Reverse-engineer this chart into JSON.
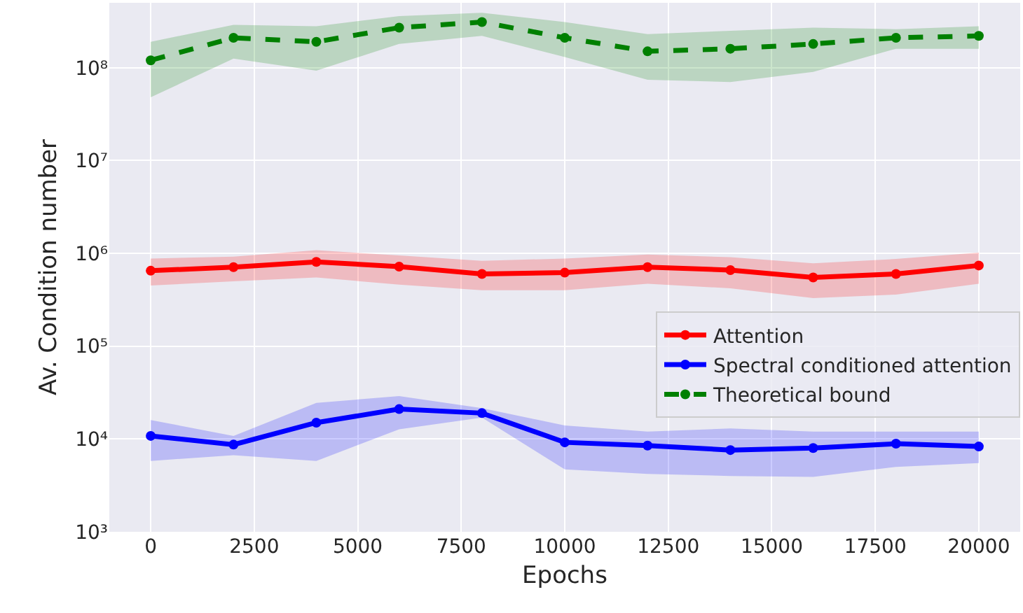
{
  "chart_data": {
    "type": "line",
    "xlabel": "Epochs",
    "ylabel": "Av. Condition number",
    "x": [
      0,
      2000,
      4000,
      6000,
      8000,
      10000,
      12000,
      14000,
      16000,
      18000,
      20000
    ],
    "series": [
      {
        "name": "Attention",
        "color": "#ff0000",
        "marker": "circle",
        "line_style": "solid",
        "values": [
          650000,
          710000,
          810000,
          720000,
          600000,
          620000,
          710000,
          660000,
          550000,
          600000,
          740000
        ],
        "lower": [
          450000,
          500000,
          550000,
          460000,
          400000,
          400000,
          470000,
          420000,
          330000,
          360000,
          470000
        ],
        "upper": [
          880000,
          920000,
          1080000,
          950000,
          830000,
          880000,
          970000,
          910000,
          780000,
          870000,
          1020000
        ]
      },
      {
        "name": "Spectral conditioned attention",
        "color": "#0000ff",
        "marker": "circle",
        "line_style": "solid",
        "values": [
          10800,
          8700,
          15000,
          21000,
          19000,
          9200,
          8500,
          7600,
          8000,
          8900,
          8300
        ],
        "lower": [
          5800,
          6700,
          5800,
          12700,
          17000,
          4700,
          4200,
          4000,
          3900,
          5000,
          5500
        ],
        "upper": [
          16000,
          10800,
          24500,
          29000,
          21500,
          14000,
          12000,
          13000,
          12000,
          12000,
          12000
        ]
      },
      {
        "name": "Theoretical bound",
        "color": "#008000",
        "marker": "circle",
        "line_style": "dashed",
        "values": [
          120000000,
          210000000,
          190000000,
          270000000,
          310000000,
          210000000,
          150000000,
          160000000,
          180000000,
          210000000,
          220000000
        ],
        "lower": [
          48000000,
          125000000,
          93000000,
          180000000,
          220000000,
          130000000,
          74000000,
          70000000,
          90000000,
          160000000,
          160000000
        ],
        "upper": [
          190000000,
          290000000,
          280000000,
          360000000,
          390000000,
          310000000,
          230000000,
          250000000,
          270000000,
          260000000,
          280000000
        ]
      }
    ],
    "log": "y",
    "grid": true,
    "legend": "bottom right",
    "xlim": [
      -1000,
      21000
    ],
    "xticks": [
      0,
      2500,
      5000,
      7500,
      10000,
      12500,
      15000,
      17500,
      20000
    ],
    "ylim": [
      1000,
      500000000
    ],
    "yticks": [
      {
        "value": 1000,
        "label": "10³"
      },
      {
        "value": 10000,
        "label": "10⁴"
      },
      {
        "value": 100000,
        "label": "10⁵"
      },
      {
        "value": 1000000,
        "label": "10⁶"
      },
      {
        "value": 10000000,
        "label": "10⁷"
      },
      {
        "value": 100000000,
        "label": "10⁸"
      }
    ]
  }
}
